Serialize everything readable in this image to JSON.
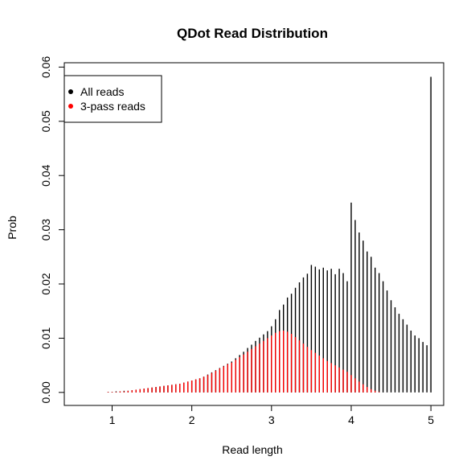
{
  "chart_data": {
    "type": "bar",
    "title": "QDot Read Distribution",
    "xlabel": "Read length",
    "ylabel": "Prob",
    "xlim": [
      0.4,
      5.16
    ],
    "ylim": [
      -0.0024,
      0.0608
    ],
    "x_ticks": [
      "1",
      "2",
      "3",
      "4",
      "5"
    ],
    "y_ticks": [
      "0.00",
      "0.01",
      "0.02",
      "0.03",
      "0.04",
      "0.05",
      "0.06"
    ],
    "legend": {
      "position": "top-left",
      "entries": [
        {
          "label": "All reads",
          "color": "#000000"
        },
        {
          "label": "3-pass reads",
          "color": "#ff0000"
        }
      ]
    },
    "x": [
      0.5,
      0.55,
      0.6,
      0.65,
      0.7,
      0.75,
      0.8,
      0.85,
      0.9,
      0.95,
      1.0,
      1.05,
      1.1,
      1.15,
      1.2,
      1.25,
      1.3,
      1.35,
      1.4,
      1.45,
      1.5,
      1.55,
      1.6,
      1.65,
      1.7,
      1.75,
      1.8,
      1.85,
      1.9,
      1.95,
      2.0,
      2.05,
      2.1,
      2.15,
      2.2,
      2.25,
      2.3,
      2.35,
      2.4,
      2.45,
      2.5,
      2.55,
      2.6,
      2.65,
      2.7,
      2.75,
      2.8,
      2.85,
      2.9,
      2.95,
      3.0,
      3.05,
      3.1,
      3.15,
      3.2,
      3.25,
      3.3,
      3.35,
      3.4,
      3.45,
      3.5,
      3.55,
      3.6,
      3.65,
      3.7,
      3.75,
      3.8,
      3.85,
      3.9,
      3.95,
      4.0,
      4.05,
      4.1,
      4.15,
      4.2,
      4.25,
      4.3,
      4.35,
      4.4,
      4.45,
      4.5,
      4.55,
      4.6,
      4.65,
      4.7,
      4.75,
      4.8,
      4.85,
      4.9,
      4.95,
      5.0
    ],
    "series": [
      {
        "name": "All reads",
        "color": "#000000",
        "values": [
          0.0,
          0.0,
          0.0,
          0.0,
          0.0,
          0.0,
          0.0,
          0.0,
          0.0,
          0.0001,
          0.0001,
          0.0002,
          0.0002,
          0.0003,
          0.0003,
          0.0004,
          0.0005,
          0.0006,
          0.0007,
          0.0008,
          0.0009,
          0.001,
          0.0011,
          0.0012,
          0.0013,
          0.0014,
          0.0015,
          0.0016,
          0.0018,
          0.002,
          0.0022,
          0.0024,
          0.0026,
          0.0029,
          0.0033,
          0.0037,
          0.0041,
          0.0045,
          0.0049,
          0.0053,
          0.0057,
          0.0063,
          0.0069,
          0.0075,
          0.0082,
          0.0088,
          0.0095,
          0.0101,
          0.0107,
          0.0113,
          0.0122,
          0.0135,
          0.0152,
          0.0162,
          0.0175,
          0.0182,
          0.0193,
          0.0203,
          0.0212,
          0.0219,
          0.0235,
          0.0232,
          0.0227,
          0.023,
          0.0225,
          0.0228,
          0.0218,
          0.0228,
          0.022,
          0.0205,
          0.035,
          0.0318,
          0.0295,
          0.028,
          0.026,
          0.025,
          0.023,
          0.022,
          0.0205,
          0.0188,
          0.017,
          0.0157,
          0.0145,
          0.0135,
          0.0125,
          0.0114,
          0.0105,
          0.01,
          0.0093,
          0.0087,
          0.0582
        ]
      },
      {
        "name": "3-pass reads",
        "color": "#ff0000",
        "values": [
          0.0,
          0.0,
          0.0,
          0.0,
          0.0,
          0.0,
          0.0,
          0.0,
          0.0,
          0.0001,
          0.0001,
          0.0001,
          0.0002,
          0.0002,
          0.0003,
          0.0004,
          0.0005,
          0.0006,
          0.0007,
          0.0008,
          0.0009,
          0.001,
          0.0011,
          0.0012,
          0.0013,
          0.0014,
          0.0015,
          0.0016,
          0.0018,
          0.002,
          0.0022,
          0.0024,
          0.0026,
          0.0029,
          0.0032,
          0.0036,
          0.004,
          0.0044,
          0.0048,
          0.0052,
          0.0055,
          0.006,
          0.0065,
          0.007,
          0.0075,
          0.008,
          0.0085,
          0.009,
          0.0095,
          0.01,
          0.0105,
          0.011,
          0.0113,
          0.0114,
          0.0112,
          0.0108,
          0.0102,
          0.0096,
          0.009,
          0.0084,
          0.0078,
          0.0073,
          0.0068,
          0.0063,
          0.0058,
          0.0054,
          0.005,
          0.0046,
          0.0042,
          0.0038,
          0.0032,
          0.0026,
          0.002,
          0.0015,
          0.001,
          0.0006,
          0.0003,
          0.0001,
          0.0,
          0.0,
          0.0,
          0.0,
          0.0,
          0.0,
          0.0,
          0.0,
          0.0,
          0.0,
          0.0,
          0.0,
          0.0
        ]
      }
    ]
  }
}
